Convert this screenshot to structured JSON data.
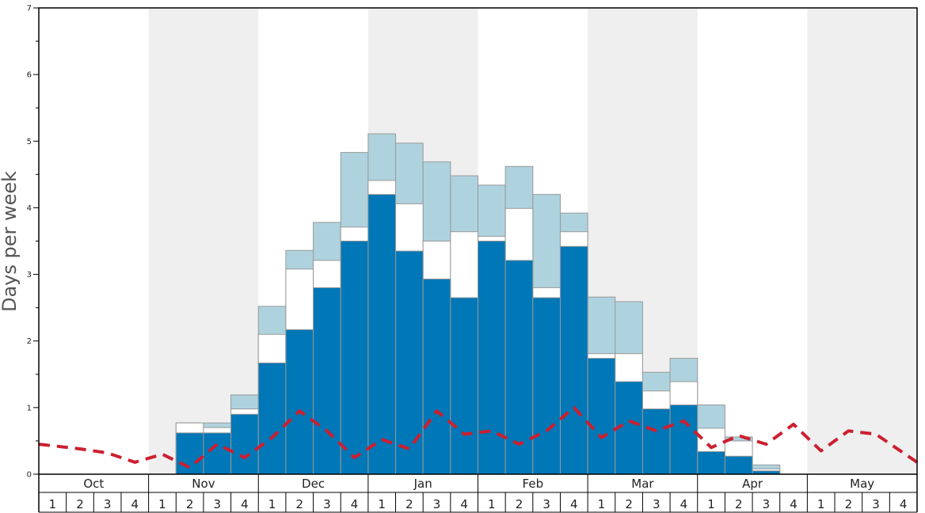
{
  "chart_data": {
    "type": "bar",
    "title": "",
    "xlabel": "",
    "ylabel": "Days per week",
    "ylim": [
      0,
      7
    ],
    "yticks": [
      "0",
      "1",
      "2",
      "3",
      "4",
      "5",
      "6",
      "7"
    ],
    "months": [
      "Oct",
      "Nov",
      "Dec",
      "Jan",
      "Feb",
      "Mar",
      "Apr",
      "May"
    ],
    "week_labels": [
      "1",
      "2",
      "3",
      "4"
    ],
    "colors": {
      "bar_dark": "#0077b6",
      "bar_white": "#ffffff",
      "bar_light": "#aed3df",
      "bar_stroke": "#999999",
      "line": "#cc1f30",
      "shade": "#efefef"
    },
    "series": [
      {
        "values": [
          0,
          0,
          0,
          0,
          0,
          0.62,
          0.62,
          0.9,
          1.67,
          2.17,
          2.8,
          3.5,
          4.2,
          3.35,
          2.93,
          2.65,
          3.5,
          3.21,
          2.65,
          3.42,
          1.74,
          1.39,
          0.98,
          1.04,
          0.34,
          0.27,
          0.05,
          0,
          0,
          0,
          0,
          0
        ]
      },
      {
        "values": [
          0,
          0,
          0,
          0,
          0,
          0.77,
          0.7,
          0.98,
          2.1,
          3.08,
          3.21,
          3.71,
          4.41,
          4.06,
          3.5,
          3.64,
          3.57,
          3.99,
          2.8,
          3.64,
          1.81,
          1.81,
          1.25,
          1.39,
          0.69,
          0.5,
          0.08,
          0,
          0,
          0,
          0,
          0
        ]
      },
      {
        "values": [
          0,
          0,
          0,
          0,
          0,
          0.77,
          0.77,
          1.19,
          2.52,
          3.36,
          3.78,
          4.83,
          5.11,
          4.97,
          4.69,
          4.48,
          4.34,
          4.62,
          4.2,
          3.92,
          2.66,
          2.59,
          1.53,
          1.74,
          1.04,
          0.56,
          0.14,
          0,
          0,
          0,
          0,
          0
        ]
      },
      {
        "type": "line",
        "values": [
          0.45,
          0.38,
          0.32,
          0.18,
          0.3,
          0.1,
          0.45,
          0.25,
          0.55,
          0.95,
          0.65,
          0.25,
          0.52,
          0.38,
          0.95,
          0.6,
          0.65,
          0.45,
          0.65,
          1.0,
          0.55,
          0.8,
          0.65,
          0.8,
          0.4,
          0.58,
          0.45,
          0.75,
          0.35,
          0.65,
          0.6,
          0.18
        ]
      }
    ]
  }
}
